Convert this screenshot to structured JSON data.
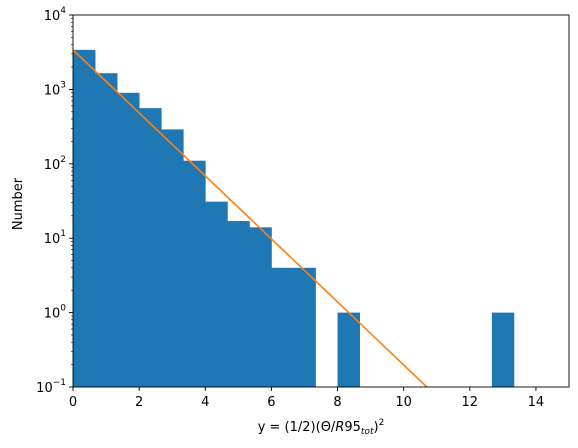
{
  "chart_data": {
    "type": "bar",
    "title": "",
    "xlabel": {
      "prefix": "y = (1/2)(Θ/",
      "italic": "R",
      "mid": "95",
      "sub": "tot",
      "close": ")",
      "sup": "2"
    },
    "ylabel": "Number",
    "yscale": "log",
    "xlim": [
      0,
      15
    ],
    "ylim": [
      0.1,
      10000
    ],
    "x_ticks": [
      "0",
      "2",
      "4",
      "6",
      "8",
      "10",
      "12",
      "14"
    ],
    "y_ticks": [
      {
        "base": "10",
        "exp": "−1"
      },
      {
        "base": "10",
        "exp": "0"
      },
      {
        "base": "10",
        "exp": "1"
      },
      {
        "base": "10",
        "exp": "2"
      },
      {
        "base": "10",
        "exp": "3"
      },
      {
        "base": "10",
        "exp": "4"
      }
    ],
    "bin_edges": [
      0,
      0.667,
      1.333,
      2,
      2.667,
      3.333,
      4,
      4.667,
      5.333,
      6,
      6.667,
      7.333,
      8,
      8.667,
      9.333,
      10,
      10.667,
      11.333,
      12,
      12.667,
      13.333,
      14,
      14.667
    ],
    "counts": [
      3400,
      1650,
      900,
      560,
      290,
      110,
      31,
      17,
      14,
      4,
      4,
      0,
      1,
      0,
      0,
      0,
      0,
      0,
      0,
      1,
      0,
      0
    ],
    "fit_line": {
      "x": [
        0,
        10.7
      ],
      "y": [
        3400,
        0.1
      ]
    },
    "colors": {
      "bars": "#1f77b4",
      "fit": "#ff7f0e"
    }
  }
}
